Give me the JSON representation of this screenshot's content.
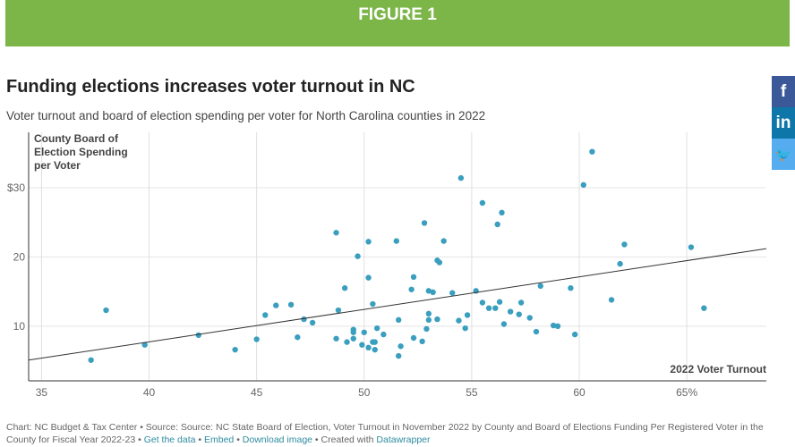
{
  "banner": "FIGURE 1",
  "title": "Funding elections increases voter turnout in NC",
  "subtitle": "Voter turnout and board of election spending per voter for North Carolina counties in 2022",
  "social": [
    {
      "icon": "facebook-icon",
      "glyph": "f",
      "color": "#3b5998"
    },
    {
      "icon": "linkedin-icon",
      "glyph": "in",
      "color": "#0e76a8"
    },
    {
      "icon": "twitter-icon",
      "glyph": "🐦",
      "color": "#55acee"
    }
  ],
  "footer": {
    "text": "Chart: NC Budget & Tax Center • Source: Source: NC State Board of Election, Voter Turnout in November 2022 by County and Board of Elections Funding Per Registered Voter in the County for Fiscal Year 2022-23 • ",
    "get_data": "Get the data",
    "sep1": " • ",
    "embed": "Embed",
    "sep2": " • ",
    "download": "Download image",
    "sep3": " • Created with ",
    "datawrapper": "Datawrapper"
  },
  "chart_data": {
    "type": "scatter",
    "xlabel": "2022 Voter Turnout",
    "ylabel": "County Board of Election Spending per Voter",
    "ylabel_lines": [
      "County Board of",
      "Election Spending",
      "per Voter"
    ],
    "xlim": [
      34.4,
      68.7
    ],
    "ylim": [
      2.1,
      38
    ],
    "xticks": [
      {
        "v": 35,
        "label": "35"
      },
      {
        "v": 40,
        "label": "40"
      },
      {
        "v": 45,
        "label": "45"
      },
      {
        "v": 50,
        "label": "50"
      },
      {
        "v": 55,
        "label": "55"
      },
      {
        "v": 60,
        "label": "60"
      },
      {
        "v": 65,
        "label": "65%"
      }
    ],
    "yticks": [
      {
        "v": 10,
        "label": "10"
      },
      {
        "v": 20,
        "label": "20"
      },
      {
        "v": 30,
        "label": "$30"
      }
    ],
    "grid": true,
    "point_color": "#3a9fbf",
    "trendline": [
      [
        34.4,
        5.1
      ],
      [
        68.7,
        21.2
      ]
    ],
    "points": [
      [
        37.3,
        5.1
      ],
      [
        38.0,
        12.3
      ],
      [
        39.8,
        7.3
      ],
      [
        42.3,
        8.7
      ],
      [
        44.0,
        6.6
      ],
      [
        45.0,
        8.1
      ],
      [
        45.4,
        11.6
      ],
      [
        45.9,
        13.0
      ],
      [
        46.6,
        13.1
      ],
      [
        46.9,
        8.4
      ],
      [
        47.2,
        11.0
      ],
      [
        47.6,
        10.5
      ],
      [
        48.7,
        23.5
      ],
      [
        48.7,
        8.2
      ],
      [
        48.8,
        12.3
      ],
      [
        49.1,
        15.5
      ],
      [
        49.2,
        7.7
      ],
      [
        49.5,
        9.5
      ],
      [
        49.5,
        9.1
      ],
      [
        49.5,
        8.2
      ],
      [
        49.7,
        20.1
      ],
      [
        49.9,
        7.3
      ],
      [
        50.0,
        9.1
      ],
      [
        50.2,
        22.2
      ],
      [
        50.2,
        17.0
      ],
      [
        50.2,
        6.9
      ],
      [
        50.4,
        13.2
      ],
      [
        50.4,
        7.7
      ],
      [
        50.5,
        6.6
      ],
      [
        50.5,
        7.7
      ],
      [
        50.6,
        9.7
      ],
      [
        50.9,
        8.8
      ],
      [
        51.5,
        22.3
      ],
      [
        51.6,
        10.9
      ],
      [
        51.6,
        5.7
      ],
      [
        51.7,
        7.1
      ],
      [
        52.2,
        15.3
      ],
      [
        52.3,
        17.1
      ],
      [
        52.3,
        8.3
      ],
      [
        52.7,
        7.8
      ],
      [
        52.8,
        24.9
      ],
      [
        52.9,
        9.6
      ],
      [
        53.0,
        15.1
      ],
      [
        53.0,
        11.8
      ],
      [
        53.0,
        10.9
      ],
      [
        53.2,
        14.9
      ],
      [
        53.4,
        19.5
      ],
      [
        53.5,
        19.2
      ],
      [
        53.4,
        11.0
      ],
      [
        53.7,
        22.3
      ],
      [
        54.1,
        14.8
      ],
      [
        54.4,
        10.8
      ],
      [
        54.5,
        31.4
      ],
      [
        54.7,
        9.7
      ],
      [
        54.8,
        11.6
      ],
      [
        55.2,
        15.1
      ],
      [
        55.5,
        27.8
      ],
      [
        55.5,
        13.4
      ],
      [
        55.8,
        12.6
      ],
      [
        56.1,
        12.6
      ],
      [
        56.2,
        24.7
      ],
      [
        56.3,
        13.5
      ],
      [
        56.4,
        26.4
      ],
      [
        56.5,
        10.3
      ],
      [
        56.8,
        12.1
      ],
      [
        57.2,
        11.7
      ],
      [
        57.3,
        13.4
      ],
      [
        57.7,
        11.2
      ],
      [
        58.0,
        9.2
      ],
      [
        58.2,
        15.8
      ],
      [
        58.8,
        10.1
      ],
      [
        59.0,
        10.0
      ],
      [
        59.6,
        15.5
      ],
      [
        59.8,
        8.8
      ],
      [
        60.2,
        30.4
      ],
      [
        60.6,
        35.2
      ],
      [
        61.5,
        13.8
      ],
      [
        61.9,
        19.0
      ],
      [
        62.1,
        21.8
      ],
      [
        65.2,
        21.4
      ],
      [
        65.8,
        12.6
      ]
    ]
  }
}
